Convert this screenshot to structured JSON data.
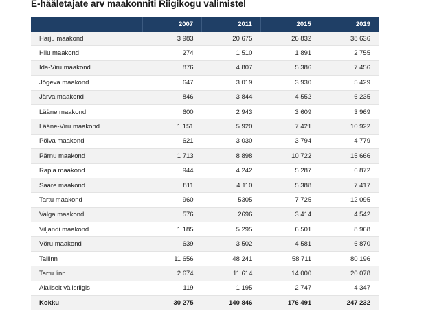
{
  "title": "E-hääletajate arv maakonniti Riigikogu valimistel",
  "columns": [
    "",
    "2007",
    "2011",
    "2015",
    "2019"
  ],
  "rows": [
    {
      "name": "Harju maakond",
      "v": [
        "3 983",
        "20 675",
        "26 832",
        "38 636"
      ]
    },
    {
      "name": "Hiiu maakond",
      "v": [
        "274",
        "1 510",
        "1 891",
        "2 755"
      ]
    },
    {
      "name": "Ida-Viru maakond",
      "v": [
        "876",
        "4 807",
        "5 386",
        "7 456"
      ]
    },
    {
      "name": "Jõgeva maakond",
      "v": [
        "647",
        "3 019",
        "3 930",
        "5 429"
      ]
    },
    {
      "name": "Järva maakond",
      "v": [
        "846",
        "3 844",
        "4 552",
        "6 235"
      ]
    },
    {
      "name": "Lääne maakond",
      "v": [
        "600",
        "2 943",
        "3 609",
        "3 969"
      ]
    },
    {
      "name": "Lääne-Viru maakond",
      "v": [
        "1 151",
        "5 920",
        "7 421",
        "10 922"
      ]
    },
    {
      "name": "Põlva maakond",
      "v": [
        "621",
        "3 030",
        "3 794",
        "4 779"
      ]
    },
    {
      "name": "Pärnu maakond",
      "v": [
        "1 713",
        "8 898",
        "10 722",
        "15 666"
      ]
    },
    {
      "name": "Rapla maakond",
      "v": [
        "944",
        "4 242",
        "5 287",
        "6 872"
      ]
    },
    {
      "name": "Saare maakond",
      "v": [
        "811",
        "4 110",
        "5 388",
        "7 417"
      ]
    },
    {
      "name": "Tartu maakond",
      "v": [
        "960",
        "5305",
        "7 725",
        "12 095"
      ]
    },
    {
      "name": "Valga maakond",
      "v": [
        "576",
        "2696",
        "3 414",
        "4 542"
      ]
    },
    {
      "name": "Viljandi maakond",
      "v": [
        "1 185",
        "5 295",
        "6 501",
        "8 968"
      ]
    },
    {
      "name": "Võru maakond",
      "v": [
        "639",
        "3 502",
        "4 581",
        "6 870"
      ]
    },
    {
      "name": "Tallinn",
      "v": [
        "11 656",
        "48 241",
        "58 711",
        "80 196"
      ]
    },
    {
      "name": "Tartu linn",
      "v": [
        "2 674",
        "11 614",
        "14 000",
        "20 078"
      ]
    },
    {
      "name": "Alaliselt välisriigis",
      "v": [
        "119",
        "1 195",
        "2 747",
        "4 347"
      ]
    }
  ],
  "total": {
    "name": "Kokku",
    "v": [
      "30 275",
      "140 846",
      "176 491",
      "247 232"
    ]
  }
}
